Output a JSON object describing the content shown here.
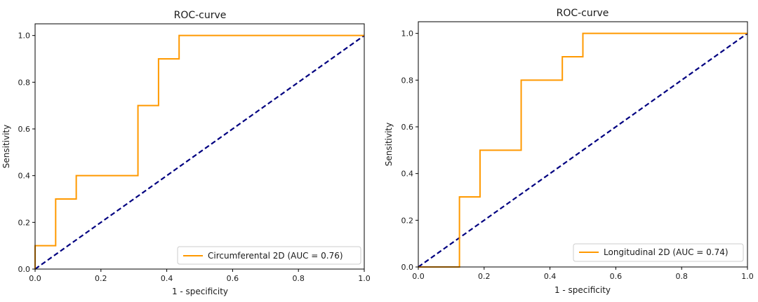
{
  "chart_data": [
    {
      "type": "line",
      "title": "ROC-curve",
      "xlabel": "1 - specificity",
      "ylabel": "Sensitivity",
      "xlim": [
        0,
        1
      ],
      "ylim": [
        0,
        1.05
      ],
      "xticks": [
        "0.0",
        "0.2",
        "0.4",
        "0.6",
        "0.8",
        "1.0"
      ],
      "yticks": [
        "0.0",
        "0.2",
        "0.4",
        "0.6",
        "0.8",
        "1.0"
      ],
      "grid": false,
      "legend_position": "lower-right",
      "series": [
        {
          "name": "Circumferental 2D (AUC = 0.76)",
          "color": "#ff9900",
          "style": "solid",
          "x": [
            0.0,
            0.0,
            0.0625,
            0.0625,
            0.125,
            0.125,
            0.3125,
            0.3125,
            0.375,
            0.375,
            0.4375,
            0.4375,
            1.0
          ],
          "y": [
            0.0,
            0.1,
            0.1,
            0.3,
            0.3,
            0.4,
            0.4,
            0.7,
            0.7,
            0.9,
            0.9,
            1.0,
            1.0
          ]
        },
        {
          "color": "#000080",
          "style": "dashed",
          "x": [
            0,
            1
          ],
          "y": [
            0,
            1
          ]
        }
      ]
    },
    {
      "type": "line",
      "title": "ROC-curve",
      "xlabel": "1 - specificity",
      "ylabel": "Sensitivity",
      "xlim": [
        0,
        1
      ],
      "ylim": [
        0,
        1.05
      ],
      "xticks": [
        "0.0",
        "0.2",
        "0.4",
        "0.6",
        "0.8",
        "1.0"
      ],
      "yticks": [
        "0.0",
        "0.2",
        "0.4",
        "0.6",
        "0.8",
        "1.0"
      ],
      "grid": false,
      "legend_position": "lower-right",
      "series": [
        {
          "name": "Longitudinal 2D (AUC = 0.74)",
          "color": "#ff9900",
          "style": "solid",
          "x": [
            0.0,
            0.125,
            0.125,
            0.1875,
            0.1875,
            0.3125,
            0.3125,
            0.4375,
            0.4375,
            0.5,
            0.5,
            1.0
          ],
          "y": [
            0.0,
            0.0,
            0.3,
            0.3,
            0.5,
            0.5,
            0.8,
            0.8,
            0.9,
            0.9,
            1.0,
            1.0
          ]
        },
        {
          "color": "#000080",
          "style": "dashed",
          "x": [
            0,
            1
          ],
          "y": [
            0,
            1
          ]
        }
      ]
    }
  ]
}
